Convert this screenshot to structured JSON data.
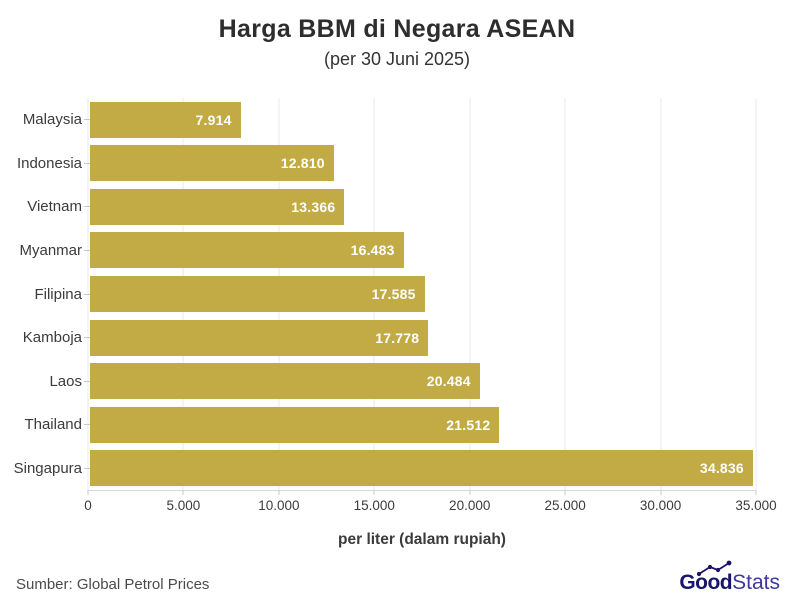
{
  "chart_data": {
    "type": "bar",
    "orientation": "horizontal",
    "title": "Harga BBM di Negara ASEAN",
    "subtitle": "(per 30 Juni 2025)",
    "categories": [
      "Malaysia",
      "Indonesia",
      "Vietnam",
      "Myanmar",
      "Filipina",
      "Kamboja",
      "Laos",
      "Thailand",
      "Singapura"
    ],
    "values": [
      7914,
      12810,
      13366,
      16483,
      17585,
      17778,
      20484,
      21512,
      34836
    ],
    "value_labels": [
      "7.914",
      "12.810",
      "13.366",
      "16.483",
      "17.585",
      "17.778",
      "20.484",
      "21.512",
      "34.836"
    ],
    "xlabel": "per liter (dalam rupiah)",
    "ylabel": "",
    "xlim": [
      0,
      35000
    ],
    "xticks": [
      0,
      5000,
      10000,
      15000,
      20000,
      25000,
      30000,
      35000
    ],
    "xtick_labels": [
      "0",
      "5.000",
      "10.000",
      "15.000",
      "20.000",
      "25.000",
      "30.000",
      "35.000"
    ],
    "grid": true,
    "legend": false,
    "bar_color": "#C2AB45",
    "value_label_color": "#FFFFFF"
  },
  "footer": {
    "source": "Sumber: Global Petrol Prices",
    "logo": {
      "bold": "Good",
      "light": "Stats",
      "color_bold": "#1B146B",
      "color_light": "#3D3799"
    }
  }
}
